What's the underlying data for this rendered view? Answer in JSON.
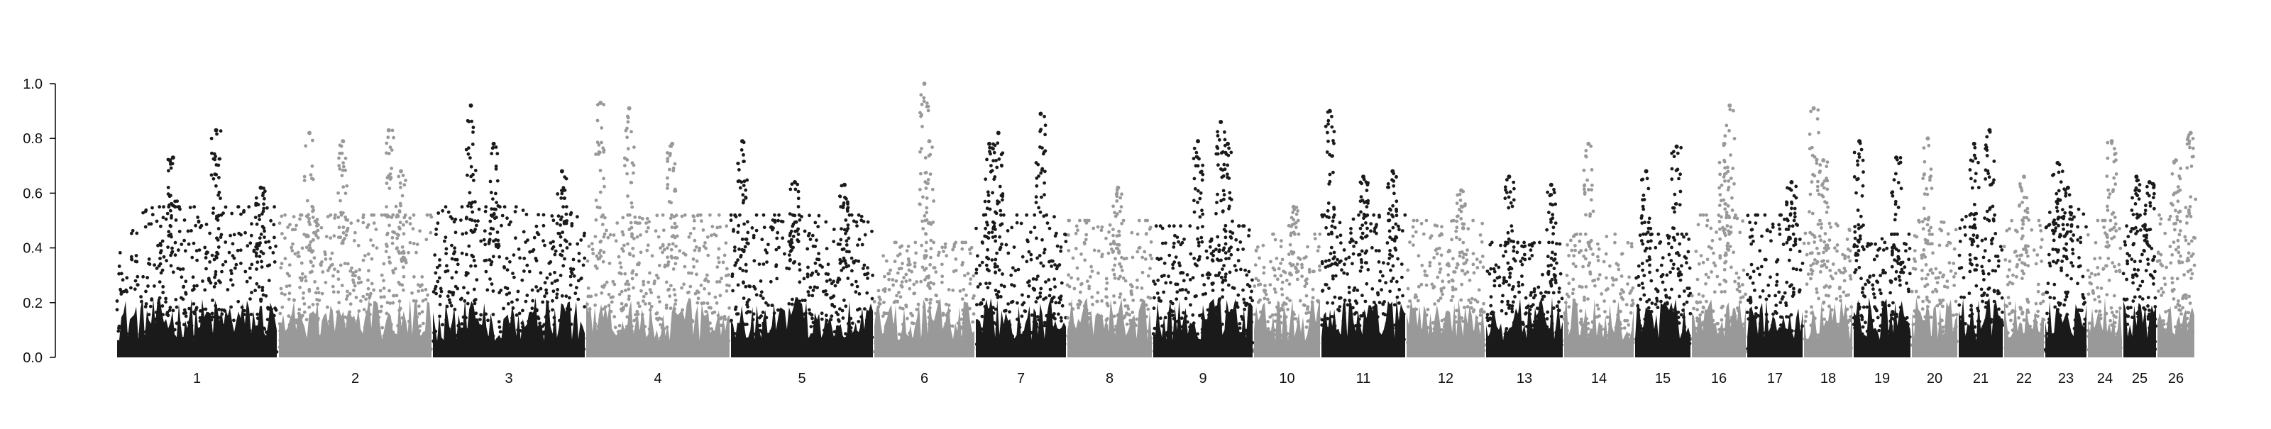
{
  "chart_data": {
    "type": "scatter",
    "title": "",
    "xlabel": "",
    "ylabel": "",
    "ylim": [
      0,
      1.0
    ],
    "grid": false,
    "legend": "none",
    "y_ticks": [
      "0.0",
      "0.2",
      "0.4",
      "0.6",
      "0.8",
      "1.0"
    ],
    "colors": {
      "odd_chromosome": "#1a1a1a",
      "even_chromosome": "#999999"
    },
    "chromosomes": [
      {
        "label": "1",
        "typical_max": 0.55,
        "peaks": [
          [
            0.35,
            0.73
          ],
          [
            0.62,
            0.83
          ],
          [
            0.9,
            0.62
          ]
        ]
      },
      {
        "label": "2",
        "typical_max": 0.52,
        "peaks": [
          [
            0.2,
            0.82
          ],
          [
            0.42,
            0.79
          ],
          [
            0.72,
            0.83
          ],
          [
            0.8,
            0.68
          ]
        ]
      },
      {
        "label": "3",
        "typical_max": 0.55,
        "peaks": [
          [
            0.25,
            0.92
          ],
          [
            0.4,
            0.78
          ],
          [
            0.85,
            0.68
          ]
        ]
      },
      {
        "label": "4",
        "typical_max": 0.52,
        "peaks": [
          [
            0.1,
            0.93
          ],
          [
            0.3,
            0.91
          ],
          [
            0.6,
            0.78
          ]
        ]
      },
      {
        "label": "5",
        "typical_max": 0.52,
        "peaks": [
          [
            0.08,
            0.79
          ],
          [
            0.45,
            0.64
          ],
          [
            0.8,
            0.63
          ]
        ]
      },
      {
        "label": "6",
        "typical_max": 0.42,
        "peaks": [
          [
            0.5,
            1.0
          ],
          [
            0.55,
            0.79
          ]
        ]
      },
      {
        "label": "7",
        "typical_max": 0.52,
        "peaks": [
          [
            0.15,
            0.78
          ],
          [
            0.25,
            0.82
          ],
          [
            0.72,
            0.89
          ]
        ]
      },
      {
        "label": "8",
        "typical_max": 0.5,
        "peaks": [
          [
            0.6,
            0.62
          ]
        ]
      },
      {
        "label": "9",
        "typical_max": 0.48,
        "peaks": [
          [
            0.45,
            0.79
          ],
          [
            0.68,
            0.86
          ],
          [
            0.75,
            0.78
          ]
        ]
      },
      {
        "label": "10",
        "typical_max": 0.45,
        "peaks": [
          [
            0.6,
            0.55
          ]
        ]
      },
      {
        "label": "11",
        "typical_max": 0.52,
        "peaks": [
          [
            0.1,
            0.9
          ],
          [
            0.5,
            0.66
          ],
          [
            0.85,
            0.68
          ]
        ]
      },
      {
        "label": "12",
        "typical_max": 0.5,
        "peaks": [
          [
            0.7,
            0.61
          ]
        ]
      },
      {
        "label": "13",
        "typical_max": 0.42,
        "peaks": [
          [
            0.3,
            0.66
          ],
          [
            0.85,
            0.63
          ]
        ]
      },
      {
        "label": "14",
        "typical_max": 0.45,
        "peaks": [
          [
            0.35,
            0.78
          ]
        ]
      },
      {
        "label": "15",
        "typical_max": 0.45,
        "peaks": [
          [
            0.2,
            0.68
          ],
          [
            0.75,
            0.77
          ]
        ]
      },
      {
        "label": "16",
        "typical_max": 0.52,
        "peaks": [
          [
            0.7,
            0.92
          ],
          [
            0.6,
            0.78
          ]
        ]
      },
      {
        "label": "17",
        "typical_max": 0.52,
        "peaks": [
          [
            0.8,
            0.64
          ]
        ]
      },
      {
        "label": "18",
        "typical_max": 0.5,
        "peaks": [
          [
            0.2,
            0.91
          ],
          [
            0.4,
            0.72
          ]
        ]
      },
      {
        "label": "19",
        "typical_max": 0.45,
        "peaks": [
          [
            0.1,
            0.79
          ],
          [
            0.75,
            0.73
          ]
        ]
      },
      {
        "label": "20",
        "typical_max": 0.5,
        "peaks": [
          [
            0.35,
            0.8
          ]
        ]
      },
      {
        "label": "21",
        "typical_max": 0.52,
        "peaks": [
          [
            0.35,
            0.78
          ],
          [
            0.7,
            0.83
          ]
        ]
      },
      {
        "label": "22",
        "typical_max": 0.5,
        "peaks": [
          [
            0.5,
            0.66
          ]
        ]
      },
      {
        "label": "23",
        "typical_max": 0.55,
        "peaks": [
          [
            0.3,
            0.71
          ],
          [
            0.55,
            0.62
          ]
        ]
      },
      {
        "label": "24",
        "typical_max": 0.5,
        "peaks": [
          [
            0.7,
            0.79
          ]
        ]
      },
      {
        "label": "25",
        "typical_max": 0.48,
        "peaks": [
          [
            0.4,
            0.66
          ],
          [
            0.8,
            0.64
          ]
        ]
      },
      {
        "label": "26",
        "typical_max": 0.52,
        "peaks": [
          [
            0.5,
            0.72
          ],
          [
            0.9,
            0.82
          ]
        ]
      }
    ]
  }
}
